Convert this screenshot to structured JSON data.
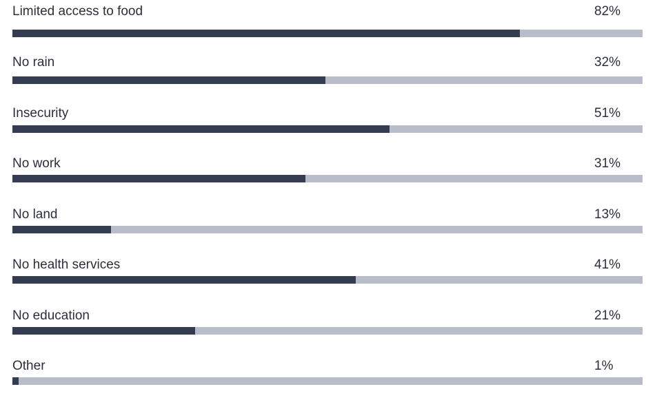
{
  "chart_data": {
    "type": "bar",
    "orientation": "horizontal",
    "categories": [
      "Limited access to food",
      "No rain",
      "Insecurity",
      "No work",
      "No land",
      "No health services",
      "No education",
      "Other"
    ],
    "values": [
      82,
      32,
      51,
      31,
      13,
      41,
      21,
      1
    ],
    "value_labels": [
      "82%",
      "32%",
      "51%",
      "31%",
      "13%",
      "41%",
      "21%",
      "1%"
    ],
    "bar_fraction": [
      0.805,
      0.497,
      0.598,
      0.465,
      0.157,
      0.545,
      0.29,
      0.01
    ],
    "colors": {
      "fill": "#343c52",
      "track": "#b9bcc9",
      "text": "#2b2f3a"
    }
  }
}
